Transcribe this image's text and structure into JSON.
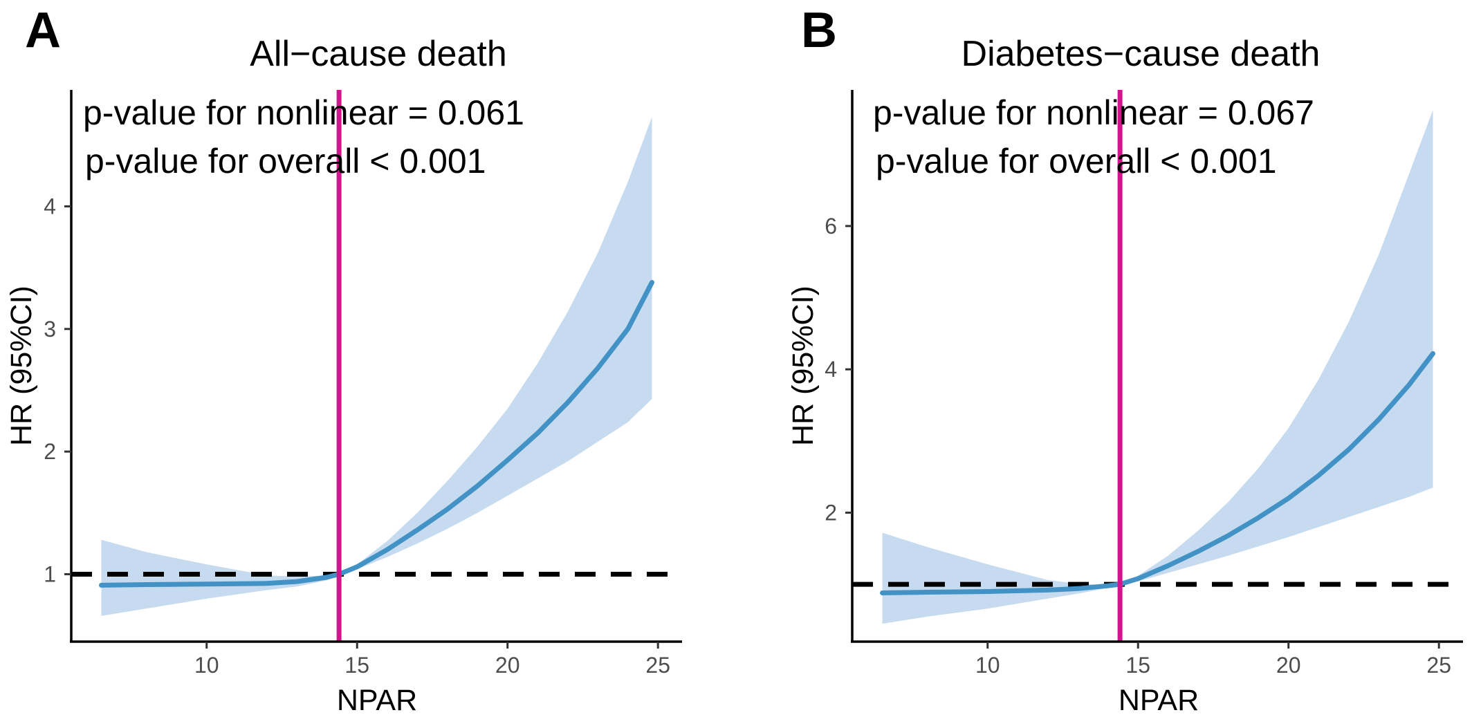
{
  "chart_data": [
    {
      "type": "line",
      "panel_label": "A",
      "title": "All−cause death",
      "xlabel": "NPAR",
      "ylabel": "HR (95%CI)",
      "annotations": [
        "p-value for nonlinear = 0.061",
        "p-value for overall < 0.001"
      ],
      "xlim": [
        5.5,
        25.8
      ],
      "ylim": [
        0.45,
        4.95
      ],
      "xticks": [
        10,
        15,
        20,
        25
      ],
      "yticks": [
        1,
        2,
        3,
        4
      ],
      "grid": false,
      "reference_lines": {
        "horizontal_y": 1,
        "vertical_x": 14.4
      },
      "series": [
        {
          "color": "#4292C6",
          "band_color": "#C6DBEF",
          "x": [
            6.5,
            8,
            10,
            12,
            13,
            14,
            14.4,
            15,
            16,
            17,
            18,
            19,
            20,
            21,
            22,
            23,
            24,
            24.8
          ],
          "y": [
            0.91,
            0.915,
            0.92,
            0.925,
            0.94,
            0.975,
            1.0,
            1.06,
            1.2,
            1.36,
            1.53,
            1.72,
            1.93,
            2.15,
            2.4,
            2.68,
            3.0,
            3.38
          ],
          "lower": [
            0.66,
            0.72,
            0.8,
            0.87,
            0.9,
            0.95,
            1.0,
            1.04,
            1.14,
            1.25,
            1.37,
            1.5,
            1.64,
            1.78,
            1.92,
            2.08,
            2.24,
            2.43
          ],
          "upper": [
            1.28,
            1.18,
            1.08,
            0.99,
            0.98,
            0.99,
            1.0,
            1.08,
            1.27,
            1.5,
            1.76,
            2.04,
            2.35,
            2.72,
            3.14,
            3.62,
            4.2,
            4.73
          ]
        }
      ]
    },
    {
      "type": "line",
      "panel_label": "B",
      "title": "Diabetes−cause death",
      "xlabel": "NPAR",
      "ylabel": "HR (95%CI)",
      "annotations": [
        "p-value for nonlinear = 0.067",
        "p-value for overall < 0.001"
      ],
      "xlim": [
        5.5,
        25.8
      ],
      "ylim": [
        0.2,
        7.9
      ],
      "xticks": [
        10,
        15,
        20,
        25
      ],
      "yticks": [
        2,
        4,
        6
      ],
      "grid": false,
      "reference_lines": {
        "horizontal_y": 1,
        "vertical_x": 14.4
      },
      "series": [
        {
          "color": "#4292C6",
          "band_color": "#C6DBEF",
          "x": [
            6.5,
            8,
            10,
            12,
            13,
            14,
            14.4,
            15,
            16,
            17,
            18,
            19,
            20,
            21,
            22,
            23,
            24,
            24.8
          ],
          "y": [
            0.88,
            0.89,
            0.9,
            0.92,
            0.94,
            0.98,
            1.0,
            1.08,
            1.26,
            1.46,
            1.68,
            1.93,
            2.2,
            2.52,
            2.88,
            3.3,
            3.78,
            4.22
          ],
          "lower": [
            0.45,
            0.55,
            0.66,
            0.8,
            0.87,
            0.95,
            1.0,
            1.04,
            1.16,
            1.28,
            1.4,
            1.53,
            1.66,
            1.8,
            1.94,
            2.08,
            2.22,
            2.35
          ],
          "upper": [
            1.72,
            1.52,
            1.28,
            1.06,
            1.01,
            0.99,
            1.0,
            1.12,
            1.4,
            1.75,
            2.15,
            2.62,
            3.18,
            3.86,
            4.66,
            5.6,
            6.72,
            7.62
          ]
        }
      ]
    }
  ]
}
